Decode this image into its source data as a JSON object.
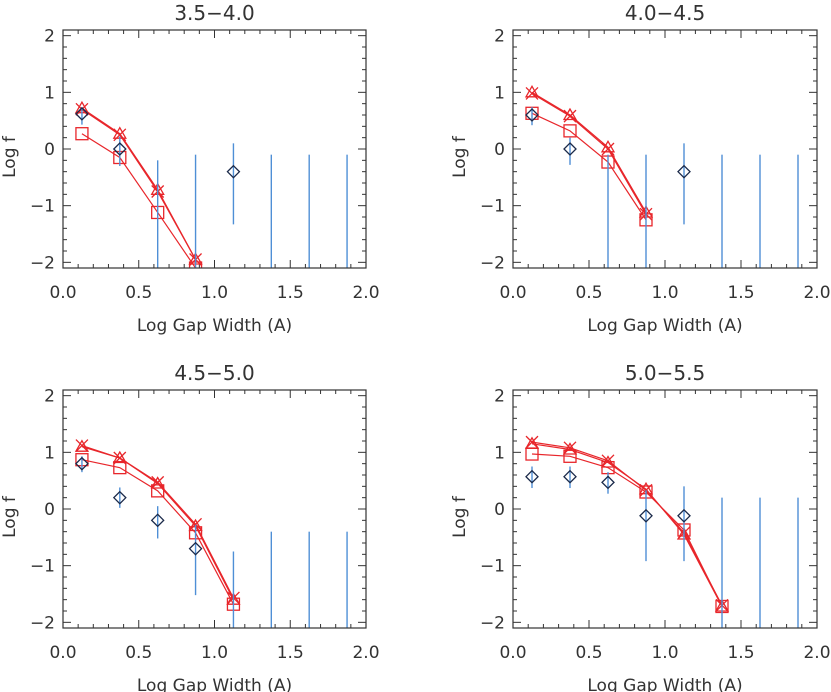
{
  "colors": {
    "model": "#e8262b",
    "observed": "#1b2a4a",
    "errorbar": "#4f8fd6",
    "axis": "#333333"
  },
  "chart_data": [
    {
      "type": "line",
      "title": "3.5−4.0",
      "xlabel": "Log Gap Width (A)",
      "ylabel": "Log f",
      "xlim": [
        0.0,
        2.0
      ],
      "ylim": [
        -2.1,
        2.1
      ],
      "xticks": [
        "0.0",
        "0.5",
        "1.0",
        "1.5",
        "2.0"
      ],
      "yticks": [
        "−2",
        "−1",
        "0",
        "1",
        "2"
      ],
      "series": [
        {
          "name": "triangle",
          "marker": "triangle",
          "x": [
            0.125,
            0.375,
            0.625,
            0.875
          ],
          "y": [
            0.72,
            0.27,
            -0.72,
            -1.95
          ]
        },
        {
          "name": "cross",
          "marker": "x",
          "x": [
            0.125,
            0.375,
            0.625,
            0.875
          ],
          "y": [
            0.7,
            0.25,
            -0.75,
            -1.95
          ]
        },
        {
          "name": "square",
          "marker": "square",
          "x": [
            0.125,
            0.375,
            0.625,
            0.875
          ],
          "y": [
            0.27,
            -0.15,
            -1.12,
            -2.1
          ]
        },
        {
          "name": "diamond",
          "marker": "diamond",
          "x": [
            0.125,
            0.375,
            0.625,
            0.875,
            1.125,
            1.375,
            1.625,
            1.875
          ],
          "y": [
            0.62,
            0.0,
            null,
            null,
            -0.4,
            null,
            null,
            null
          ],
          "err_lo": [
            0.43,
            -0.3,
            -2.1,
            -2.1,
            -1.33,
            -2.1,
            -2.1,
            -2.1
          ],
          "err_hi": [
            0.74,
            0.22,
            -0.2,
            -0.1,
            0.1,
            -0.1,
            -0.1,
            -0.1
          ]
        }
      ]
    },
    {
      "type": "line",
      "title": "4.0−4.5",
      "xlabel": "Log Gap Width (A)",
      "ylabel": "Log f",
      "xlim": [
        0.0,
        2.0
      ],
      "ylim": [
        -2.1,
        2.1
      ],
      "xticks": [
        "0.0",
        "0.5",
        "1.0",
        "1.5",
        "2.0"
      ],
      "yticks": [
        "−2",
        "−1",
        "0",
        "1",
        "2"
      ],
      "series": [
        {
          "name": "triangle",
          "marker": "triangle",
          "x": [
            0.125,
            0.375,
            0.625,
            0.875
          ],
          "y": [
            1.0,
            0.6,
            0.03,
            -1.12
          ]
        },
        {
          "name": "cross",
          "marker": "x",
          "x": [
            0.125,
            0.375,
            0.625,
            0.875
          ],
          "y": [
            0.98,
            0.58,
            0.0,
            -1.15
          ]
        },
        {
          "name": "square",
          "marker": "square",
          "x": [
            0.125,
            0.375,
            0.625,
            0.875
          ],
          "y": [
            0.63,
            0.32,
            -0.23,
            -1.25
          ]
        },
        {
          "name": "diamond",
          "marker": "diamond",
          "x": [
            0.125,
            0.375,
            0.625,
            0.875,
            1.125,
            1.375,
            1.625,
            1.875
          ],
          "y": [
            0.6,
            0.0,
            null,
            null,
            -0.4,
            null,
            null,
            null
          ],
          "err_lo": [
            0.42,
            -0.28,
            -2.1,
            -2.1,
            -1.33,
            -2.1,
            -2.1,
            -2.1
          ],
          "err_hi": [
            0.74,
            0.2,
            -0.1,
            -0.1,
            0.1,
            -0.1,
            -0.1,
            -0.1
          ]
        }
      ]
    },
    {
      "type": "line",
      "title": "4.5−5.0",
      "xlabel": "Log Gap Width (A)",
      "ylabel": "Log f",
      "xlim": [
        0.0,
        2.0
      ],
      "ylim": [
        -2.1,
        2.1
      ],
      "xticks": [
        "0.0",
        "0.5",
        "1.0",
        "1.5",
        "2.0"
      ],
      "yticks": [
        "−2",
        "−1",
        "0",
        "1",
        "2"
      ],
      "series": [
        {
          "name": "triangle",
          "marker": "triangle",
          "x": [
            0.125,
            0.375,
            0.625,
            0.875,
            1.125
          ],
          "y": [
            1.1,
            0.9,
            0.45,
            -0.3,
            -1.6
          ]
        },
        {
          "name": "cross",
          "marker": "x",
          "x": [
            0.125,
            0.375,
            0.625,
            0.875,
            1.125
          ],
          "y": [
            1.12,
            0.9,
            0.47,
            -0.27,
            -1.57
          ]
        },
        {
          "name": "square",
          "marker": "square",
          "x": [
            0.125,
            0.375,
            0.625,
            0.875,
            1.125
          ],
          "y": [
            0.87,
            0.73,
            0.32,
            -0.42,
            -1.68
          ]
        },
        {
          "name": "diamond",
          "marker": "diamond",
          "x": [
            0.125,
            0.375,
            0.625,
            0.875,
            1.125,
            1.375,
            1.625,
            1.875
          ],
          "y": [
            0.8,
            0.2,
            -0.2,
            -0.7,
            null,
            null,
            null,
            null
          ],
          "err_lo": [
            0.65,
            0.02,
            -0.52,
            -1.52,
            -2.1,
            -2.1,
            -2.1,
            -2.1
          ],
          "err_hi": [
            0.93,
            0.38,
            0.05,
            -0.28,
            -0.75,
            -0.4,
            -0.4,
            -0.4
          ]
        }
      ]
    },
    {
      "type": "line",
      "title": "5.0−5.5",
      "xlabel": "Log Gap Width (A)",
      "ylabel": "Log f",
      "xlim": [
        0.0,
        2.0
      ],
      "ylim": [
        -2.1,
        2.1
      ],
      "xticks": [
        "0.0",
        "0.5",
        "1.0",
        "1.5",
        "2.0"
      ],
      "yticks": [
        "−2",
        "−1",
        "0",
        "1",
        "2"
      ],
      "series": [
        {
          "name": "triangle",
          "marker": "triangle",
          "x": [
            0.125,
            0.375,
            0.625,
            0.875,
            1.125,
            1.375
          ],
          "y": [
            1.15,
            1.05,
            0.82,
            0.35,
            -0.45,
            -1.72
          ]
        },
        {
          "name": "cross",
          "marker": "x",
          "x": [
            0.125,
            0.375,
            0.625,
            0.875,
            1.125,
            1.375
          ],
          "y": [
            1.18,
            1.08,
            0.85,
            0.33,
            -0.42,
            -1.7
          ]
        },
        {
          "name": "square",
          "marker": "square",
          "x": [
            0.125,
            0.375,
            0.625,
            0.875,
            1.125,
            1.375
          ],
          "y": [
            0.97,
            0.93,
            0.73,
            0.3,
            -0.37,
            -1.72
          ]
        },
        {
          "name": "diamond",
          "marker": "diamond",
          "x": [
            0.125,
            0.375,
            0.625,
            0.875,
            1.125,
            1.375,
            1.625,
            1.875
          ],
          "y": [
            0.57,
            0.57,
            0.47,
            -0.12,
            -0.12,
            null,
            null,
            null
          ],
          "err_lo": [
            0.37,
            0.37,
            0.27,
            -0.92,
            -0.92,
            -2.1,
            -2.1,
            -2.1
          ],
          "err_hi": [
            0.75,
            0.75,
            0.65,
            0.33,
            0.4,
            0.2,
            0.2,
            0.2
          ]
        }
      ]
    }
  ]
}
